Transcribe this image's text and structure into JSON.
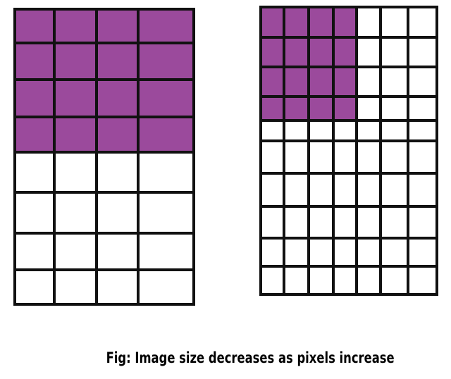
{
  "caption": "Fig: Image size decreases as pixels increase",
  "colors": {
    "filled": "#9b4a9c",
    "empty": "#ffffff",
    "grid_line": "#111111"
  },
  "grids": [
    {
      "name": "low-pixel-grid",
      "columns": 4,
      "rows": 8,
      "filled_columns": 4,
      "filled_rows": 4
    },
    {
      "name": "high-pixel-grid",
      "columns": 7,
      "rows": 10,
      "filled_columns": 4,
      "filled_rows": 4
    }
  ]
}
